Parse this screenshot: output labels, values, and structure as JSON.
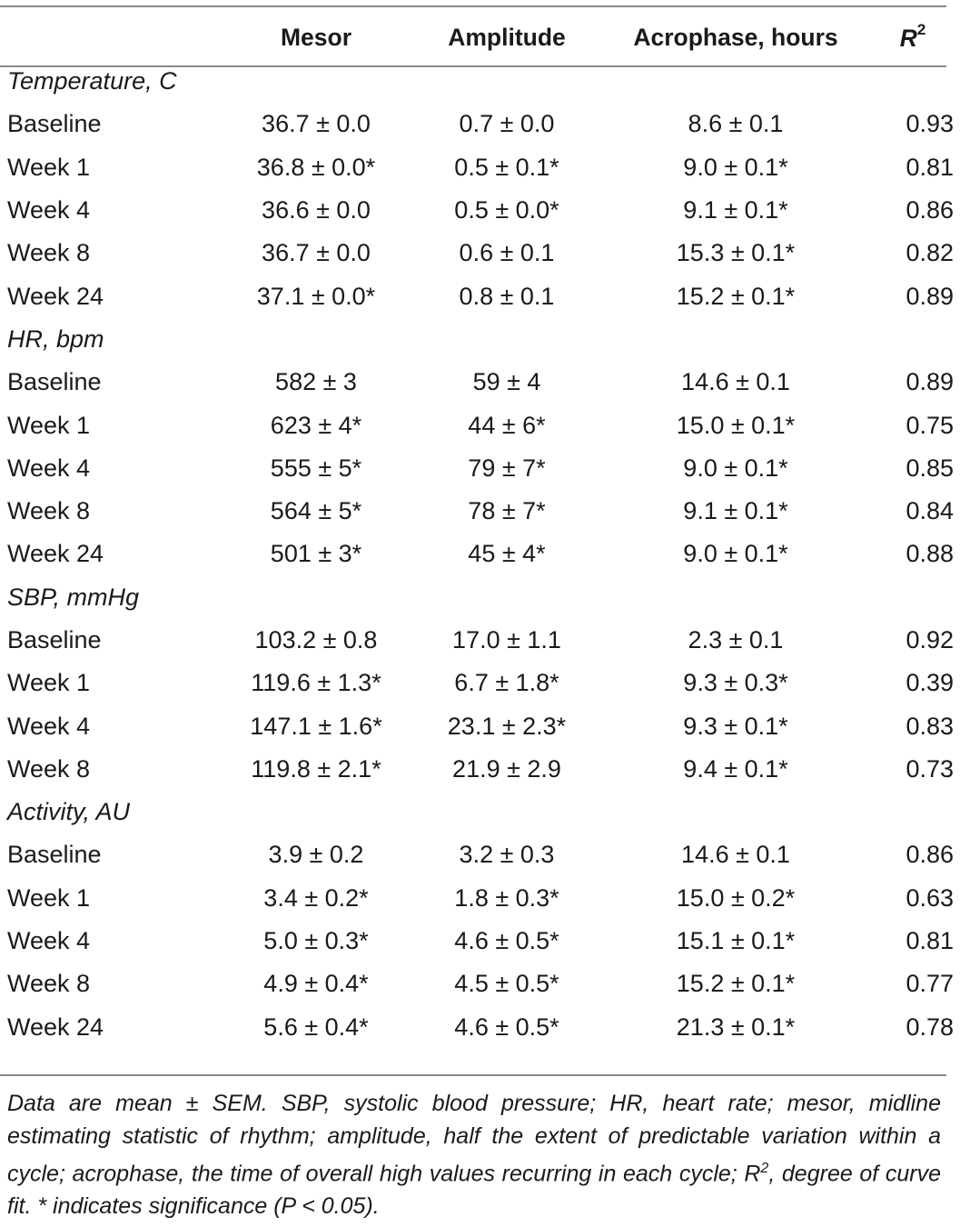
{
  "table": {
    "headers": {
      "label": "",
      "mesor": "Mesor",
      "amplitude": "Amplitude",
      "acrophase": "Acrophase, hours",
      "r2_base": "R",
      "r2_sup": "2"
    },
    "sections": [
      {
        "title": "Temperature, C",
        "rows": [
          {
            "label": "Baseline",
            "mesor": "36.7 ± 0.0",
            "amplitude": "0.7 ± 0.0",
            "acrophase": "8.6 ± 0.1",
            "r2": "0.93"
          },
          {
            "label": "Week 1",
            "mesor": "36.8 ± 0.0*",
            "amplitude": "0.5 ± 0.1*",
            "acrophase": "9.0 ± 0.1*",
            "r2": "0.81"
          },
          {
            "label": "Week 4",
            "mesor": "36.6 ± 0.0",
            "amplitude": "0.5 ± 0.0*",
            "acrophase": "9.1 ± 0.1*",
            "r2": "0.86"
          },
          {
            "label": "Week 8",
            "mesor": "36.7 ± 0.0",
            "amplitude": "0.6 ± 0.1",
            "acrophase": "15.3 ± 0.1*",
            "r2": "0.82"
          },
          {
            "label": "Week 24",
            "mesor": "37.1 ± 0.0*",
            "amplitude": "0.8 ± 0.1",
            "acrophase": "15.2 ± 0.1*",
            "r2": "0.89"
          }
        ]
      },
      {
        "title": "HR, bpm",
        "rows": [
          {
            "label": "Baseline",
            "mesor": "582 ± 3",
            "amplitude": "59 ± 4",
            "acrophase": "14.6 ± 0.1",
            "r2": "0.89"
          },
          {
            "label": "Week 1",
            "mesor": "623 ± 4*",
            "amplitude": "44 ± 6*",
            "acrophase": "15.0 ± 0.1*",
            "r2": "0.75"
          },
          {
            "label": "Week 4",
            "mesor": "555 ± 5*",
            "amplitude": "79 ± 7*",
            "acrophase": "9.0 ± 0.1*",
            "r2": "0.85"
          },
          {
            "label": "Week 8",
            "mesor": "564 ± 5*",
            "amplitude": "78 ± 7*",
            "acrophase": "9.1 ± 0.1*",
            "r2": "0.84"
          },
          {
            "label": "Week 24",
            "mesor": "501 ± 3*",
            "amplitude": "45 ± 4*",
            "acrophase": "9.0 ± 0.1*",
            "r2": "0.88"
          }
        ]
      },
      {
        "title": "SBP, mmHg",
        "rows": [
          {
            "label": "Baseline",
            "mesor": "103.2 ± 0.8",
            "amplitude": "17.0 ± 1.1",
            "acrophase": "2.3 ± 0.1",
            "r2": "0.92"
          },
          {
            "label": "Week 1",
            "mesor": "119.6 ± 1.3*",
            "amplitude": "6.7 ± 1.8*",
            "acrophase": "9.3 ± 0.3*",
            "r2": "0.39"
          },
          {
            "label": "Week 4",
            "mesor": "147.1 ± 1.6*",
            "amplitude": "23.1 ± 2.3*",
            "acrophase": "9.3 ± 0.1*",
            "r2": "0.83"
          },
          {
            "label": "Week 8",
            "mesor": "119.8 ± 2.1*",
            "amplitude": "21.9 ± 2.9",
            "acrophase": "9.4 ± 0.1*",
            "r2": "0.73"
          }
        ]
      },
      {
        "title": "Activity, AU",
        "rows": [
          {
            "label": "Baseline",
            "mesor": "3.9 ± 0.2",
            "amplitude": "3.2 ± 0.3",
            "acrophase": "14.6 ± 0.1",
            "r2": "0.86"
          },
          {
            "label": "Week 1",
            "mesor": "3.4 ± 0.2*",
            "amplitude": "1.8 ± 0.3*",
            "acrophase": "15.0 ± 0.2*",
            "r2": "0.63"
          },
          {
            "label": "Week 4",
            "mesor": "5.0 ± 0.3*",
            "amplitude": "4.6 ± 0.5*",
            "acrophase": "15.1 ± 0.1*",
            "r2": "0.81"
          },
          {
            "label": "Week 8",
            "mesor": "4.9 ± 0.4*",
            "amplitude": "4.5 ± 0.5*",
            "acrophase": "15.2 ± 0.1*",
            "r2": "0.77"
          },
          {
            "label": "Week 24",
            "mesor": "5.6 ± 0.4*",
            "amplitude": "4.6 ± 0.5*",
            "acrophase": "21.3 ± 0.1*",
            "r2": "0.78"
          }
        ]
      }
    ]
  },
  "footnote": {
    "part1": "Data are mean ± SEM. SBP, systolic blood pressure; HR, heart rate; mesor, midline estimating statistic of rhythm; amplitude, half the extent of predictable variation within a cycle; acrophase, the time of overall high values recurring in each cycle; ",
    "r2_base": "R",
    "r2_sup": "2",
    "part2": ", degree of curve fit. * indicates significance (P < 0.05)."
  }
}
